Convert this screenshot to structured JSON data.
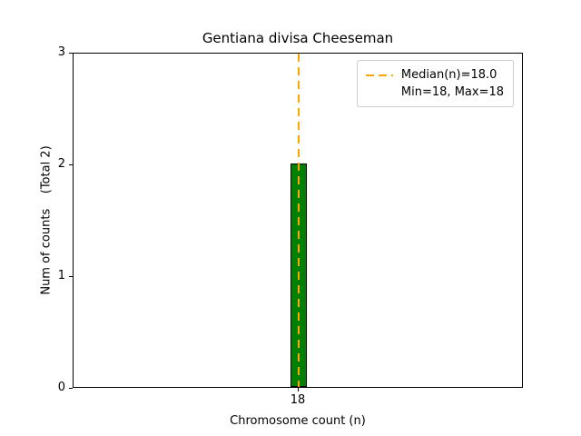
{
  "chart_data": {
    "type": "bar",
    "title": "Gentiana divisa Cheeseman",
    "xlabel": "Chromosome count (n)",
    "ylabel": "Num of counts    (Total 2)",
    "categories": [
      "18"
    ],
    "values": [
      2
    ],
    "total": 2,
    "ylim": [
      0,
      3
    ],
    "yticks": [
      0,
      1,
      2,
      3
    ],
    "xticks": [
      "18"
    ],
    "median": 18.0,
    "min": 18,
    "max": 18,
    "legend": {
      "entries": [
        "Median(n)=18.0",
        "Min=18, Max=18"
      ],
      "position": "upper right"
    },
    "grid": false,
    "colors": {
      "bar_fill": "#008000",
      "bar_edge": "#000000",
      "median_line": "#ffa500",
      "axis": "#000000",
      "legend_border": "#cccccc"
    }
  }
}
